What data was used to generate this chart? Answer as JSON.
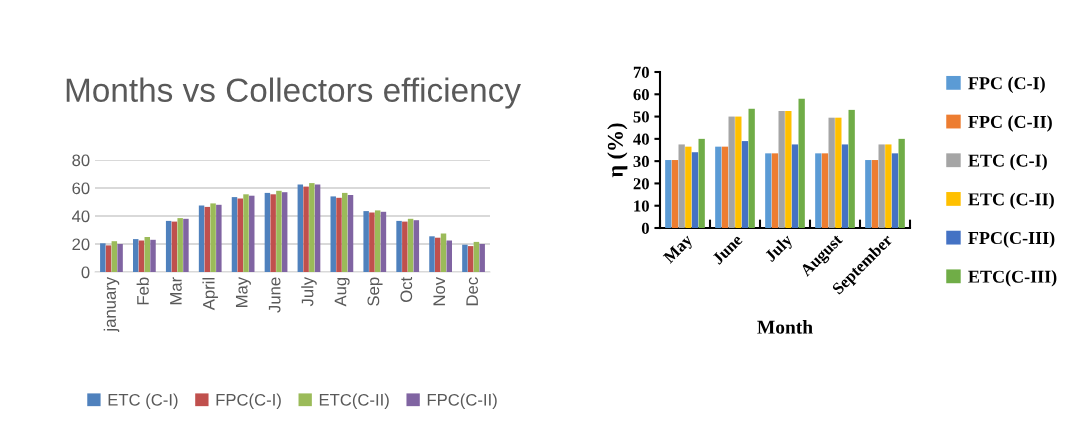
{
  "chart_data": [
    {
      "type": "bar",
      "title": "Months vs Collectors efficiency",
      "categories": [
        "january",
        "Feb",
        "Mar",
        "April",
        "May",
        "June",
        "July",
        "Aug",
        "Sep",
        "Oct",
        "Nov",
        "Dec"
      ],
      "series": [
        {
          "name": "ETC (C-I)",
          "color": "#4f81bd",
          "values": [
            20.5,
            23.5,
            36.5,
            47.5,
            53.5,
            56.5,
            62.5,
            54,
            43.5,
            36.5,
            25.5,
            19.5
          ]
        },
        {
          "name": "FPC(C-I)",
          "color": "#c0504d",
          "values": [
            19,
            22.5,
            36,
            46.5,
            52.5,
            55.5,
            61,
            53,
            42.5,
            36,
            24.5,
            18.5
          ]
        },
        {
          "name": "ETC(C-II)",
          "color": "#9bbb59",
          "values": [
            22,
            25,
            38.5,
            49,
            55.5,
            58,
            63.5,
            56.5,
            44,
            38,
            27.5,
            21.5
          ]
        },
        {
          "name": "FPC(C-II)",
          "color": "#8064a2",
          "values": [
            20,
            23,
            38,
            48,
            54.5,
            57,
            62.5,
            55,
            43,
            37,
            22.5,
            20
          ]
        }
      ],
      "ylim": [
        0,
        80
      ],
      "yticks": [
        0,
        20,
        40,
        60,
        80
      ],
      "grid": "y",
      "legend": "bottom"
    },
    {
      "type": "bar",
      "xlabel": "Month",
      "ylabel": "η (%)",
      "categories": [
        "May",
        "June",
        "July",
        "August",
        "September"
      ],
      "series": [
        {
          "name": "FPC (C-I)",
          "color": "#5b9bd5",
          "values": [
            30.5,
            36.5,
            33.5,
            33.5,
            30.5
          ]
        },
        {
          "name": "FPC (C-II)",
          "color": "#ed7d31",
          "values": [
            30.5,
            36.5,
            33.5,
            33.5,
            30.5
          ]
        },
        {
          "name": "ETC (C-I)",
          "color": "#a5a5a5",
          "values": [
            37.5,
            50,
            52.5,
            49.5,
            37.5
          ]
        },
        {
          "name": "ETC (C-II)",
          "color": "#ffc000",
          "values": [
            36.5,
            50,
            52.5,
            49.5,
            37.5
          ]
        },
        {
          "name": "FPC(C-III)",
          "color": "#4472c4",
          "values": [
            34,
            39,
            37.5,
            37.5,
            33.5
          ]
        },
        {
          "name": "ETC(C-III)",
          "color": "#70ad47",
          "values": [
            40,
            53.5,
            58,
            53,
            40
          ]
        }
      ],
      "ylim": [
        0,
        70
      ],
      "yticks": [
        0,
        10,
        20,
        30,
        40,
        50,
        60,
        70
      ],
      "legend": "right"
    }
  ]
}
